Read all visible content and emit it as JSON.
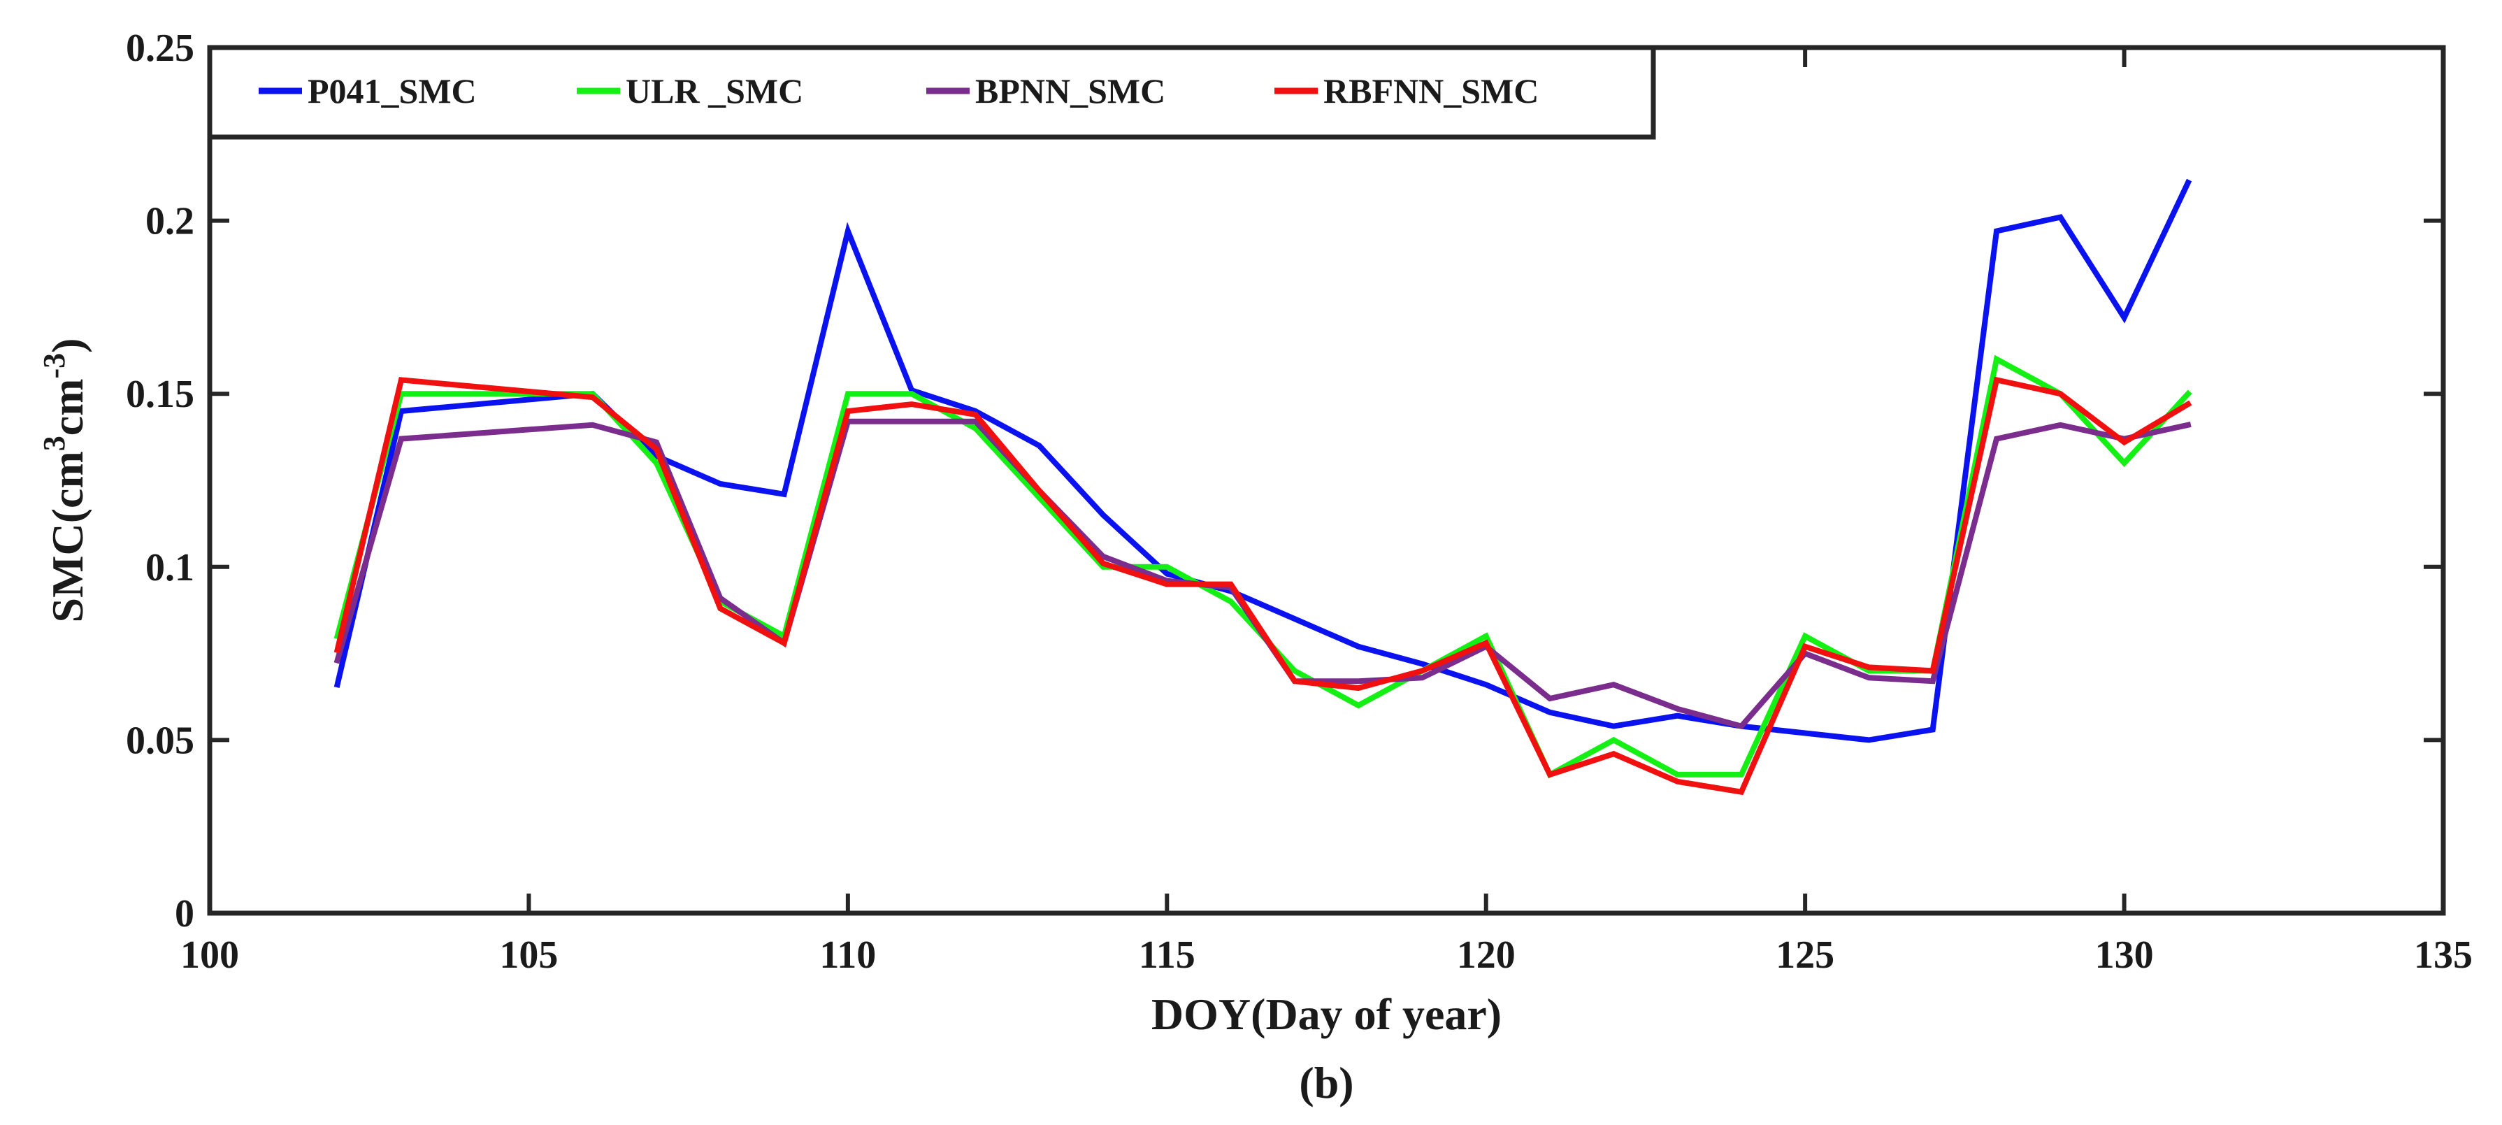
{
  "chart_data": {
    "type": "line",
    "title": "",
    "xlabel": "DOY(Day of year)",
    "ylabel": "SMC(cm3cm-3)",
    "ylabel_parts": {
      "base": "SMC(cm",
      "sup1": "3",
      "mid": "cm",
      "sup2": "-3",
      "end": ")"
    },
    "caption": "(b)",
    "xlim": [
      100,
      135
    ],
    "ylim": [
      0,
      0.25
    ],
    "xticks": [
      100,
      105,
      110,
      115,
      120,
      125,
      130,
      135
    ],
    "xtick_labels": [
      "100",
      "105",
      "110",
      "115",
      "120",
      "125",
      "130",
      "135"
    ],
    "yticks": [
      0,
      0.05,
      0.1,
      0.15,
      0.2,
      0.25
    ],
    "ytick_labels": [
      "0",
      "0.05",
      "0.1",
      "0.15",
      "0.2",
      "0.25"
    ],
    "grid": false,
    "legend": "top-left",
    "x": [
      102,
      103,
      106,
      107,
      108,
      109,
      110,
      111,
      112,
      113,
      114,
      115,
      116,
      117,
      118,
      119,
      120,
      121,
      122,
      123,
      124,
      125,
      126,
      127,
      128,
      129,
      130,
      131
    ],
    "series": [
      {
        "name": "P041_SMC",
        "legend_label": "P041_SMC",
        "color": "#0a12f0",
        "values": [
          0.066,
          0.145,
          0.15,
          0.132,
          0.124,
          0.121,
          0.197,
          0.151,
          0.145,
          0.135,
          0.115,
          0.098,
          0.093,
          0.085,
          0.077,
          0.072,
          0.066,
          0.058,
          0.054,
          0.057,
          0.054,
          0.052,
          0.05,
          0.053,
          0.197,
          0.201,
          0.172,
          0.211
        ]
      },
      {
        "name": "ULR_SMC",
        "legend_label": "ULR _SMC",
        "color": "#14f014",
        "values": [
          0.08,
          0.15,
          0.15,
          0.13,
          0.09,
          0.08,
          0.15,
          0.15,
          0.14,
          0.12,
          0.1,
          0.1,
          0.09,
          0.07,
          0.06,
          0.07,
          0.08,
          0.04,
          0.05,
          0.04,
          0.04,
          0.08,
          0.07,
          0.07,
          0.16,
          0.15,
          0.13,
          0.15
        ]
      },
      {
        "name": "BPNN_SMC",
        "legend_label": "BPNN_SMC",
        "color": "#7b2d8e",
        "values": [
          0.073,
          0.137,
          0.141,
          0.136,
          0.091,
          0.078,
          0.142,
          0.142,
          0.142,
          0.122,
          0.103,
          0.096,
          0.094,
          0.067,
          0.067,
          0.068,
          0.077,
          0.062,
          0.066,
          0.059,
          0.054,
          0.075,
          0.068,
          0.067,
          0.137,
          0.141,
          0.137,
          0.141
        ]
      },
      {
        "name": "RBFNN_SMC",
        "legend_label": "RBFNN_SMC",
        "color": "#f01010",
        "values": [
          0.076,
          0.154,
          0.149,
          0.134,
          0.088,
          0.078,
          0.145,
          0.147,
          0.144,
          0.122,
          0.101,
          0.095,
          0.095,
          0.067,
          0.065,
          0.07,
          0.078,
          0.04,
          0.046,
          0.038,
          0.035,
          0.077,
          0.071,
          0.07,
          0.154,
          0.15,
          0.136,
          0.147
        ]
      }
    ]
  }
}
